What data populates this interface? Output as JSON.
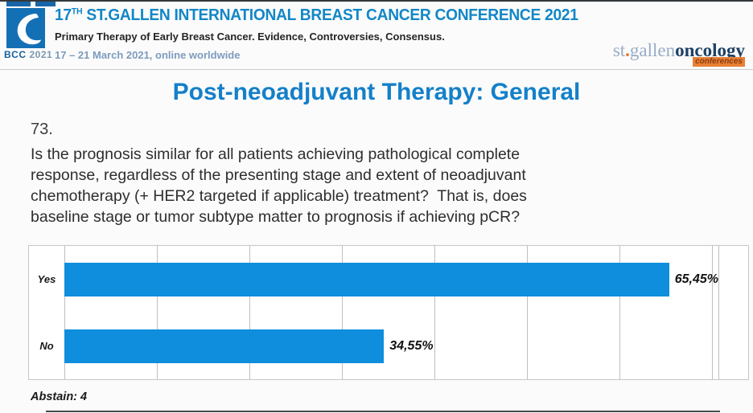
{
  "header": {
    "logo": {
      "badge_bold": "BCC",
      "badge_year": "2021"
    },
    "title_prefix": "17",
    "title_superscript": "TH",
    "title_rest": " ST.GALLEN INTERNATIONAL BREAST CANCER CONFERENCE 2021",
    "subtitle": "Primary Therapy of Early Breast Cancer. Evidence, Controversies, Consensus.",
    "date_line": "17 – 21 March 2021, online worldwide",
    "brand": {
      "part1": "st",
      "dot": ".",
      "part2": "gallen",
      "part3": "oncology",
      "badge": "conferences"
    }
  },
  "slide": {
    "title": "Post-neoadjuvant Therapy: General",
    "question_number": "73.",
    "question_text": "Is the prognosis similar for all patients achieving pathological complete\nresponse, regardless of the presenting stage and extent of neoadjuvant\nchemotherapy (+ HER2 targeted if applicable) treatment?  That is, does\nbaseline stage or tumor subtype matter to prognosis if achieving pCR?"
  },
  "chart_data": {
    "type": "bar",
    "orientation": "horizontal",
    "title": "",
    "categories": [
      "Yes",
      "No"
    ],
    "values": [
      65.45,
      34.55
    ],
    "value_labels": [
      "65,45%",
      "34,55%"
    ],
    "xlim": [
      0,
      70.7
    ],
    "gridline_interval_percent": 10,
    "grid": true,
    "legend": "none",
    "bar_color": "#0e8edc",
    "footnote": "Abstain: 4"
  },
  "colors": {
    "header_title_blue": "#1287c6",
    "slide_title_blue": "#1480c9",
    "bar_blue": "#0e8edc",
    "date_blue": "#7d9bbe",
    "brand_light_blue": "#97acc6",
    "brand_navy": "#1c4166",
    "brand_orange": "#e87728"
  }
}
